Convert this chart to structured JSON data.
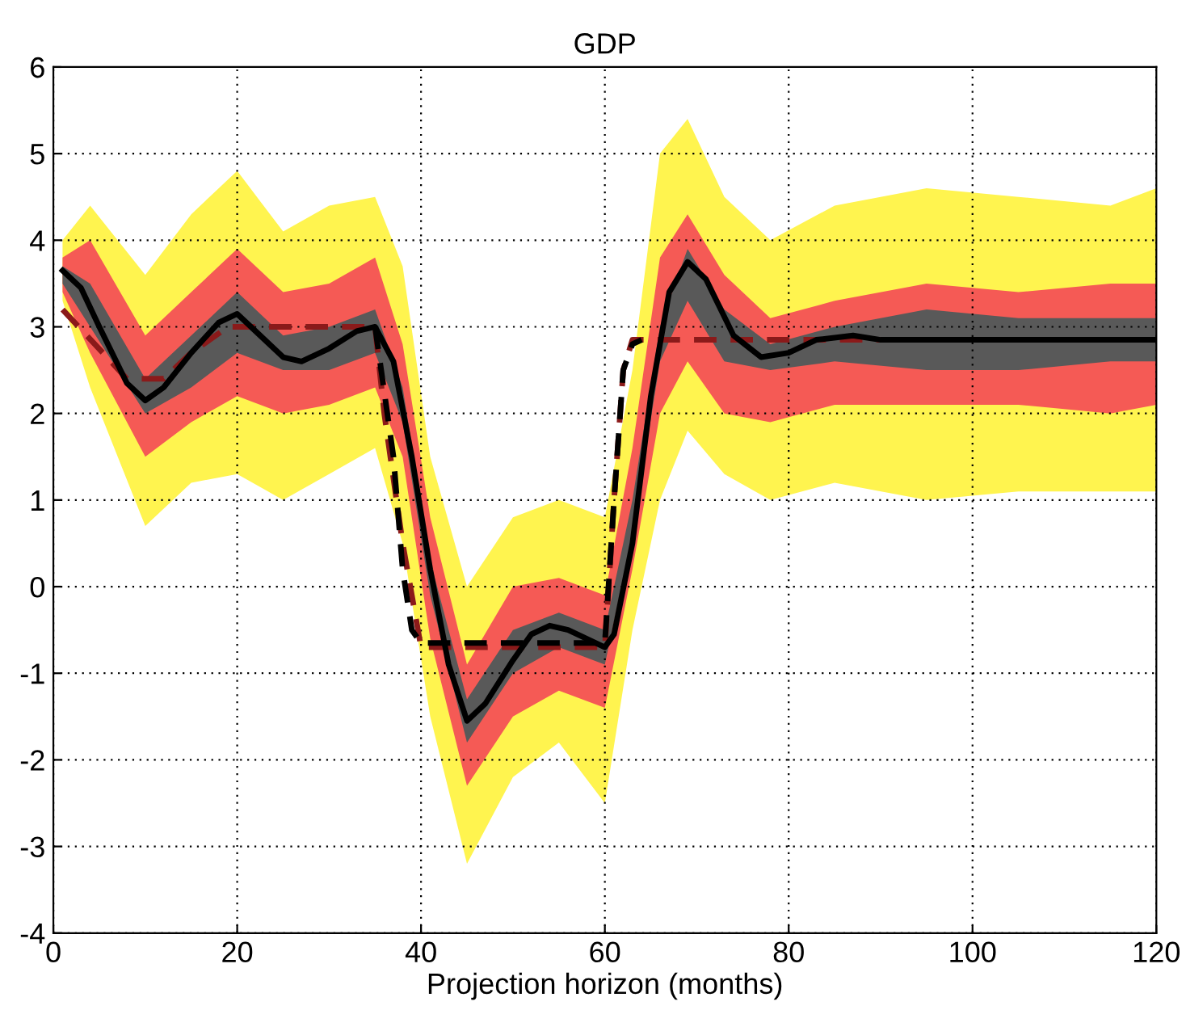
{
  "chart_data": {
    "type": "line",
    "title": "GDP",
    "xlabel": "Projection horizon (months)",
    "xlim": [
      0,
      120
    ],
    "ylim": [
      -4,
      6
    ],
    "xticks": [
      0,
      20,
      40,
      60,
      80,
      100,
      120
    ],
    "yticks": [
      -4,
      -3,
      -2,
      -1,
      0,
      1,
      2,
      3,
      4,
      5,
      6
    ],
    "grid": true,
    "series": [
      {
        "color": "#fff44f",
        "x": [
          1,
          4,
          10,
          15,
          20,
          25,
          30,
          35,
          38,
          41,
          45,
          50,
          55,
          60,
          63,
          66,
          69,
          73,
          78,
          85,
          95,
          105,
          115,
          120
        ],
        "values": [
          null,
          null,
          null,
          null,
          null,
          null,
          null,
          null,
          null,
          null,
          null,
          null,
          null,
          null,
          null,
          null,
          null,
          null,
          null,
          null,
          null,
          null,
          null,
          null
        ],
        "lower": [
          3.3,
          2.3,
          0.7,
          1.2,
          1.3,
          1.0,
          1.3,
          1.6,
          0.5,
          -1.5,
          -3.2,
          -2.2,
          -1.8,
          -2.5,
          -0.5,
          1.0,
          1.8,
          1.3,
          1.0,
          1.2,
          1.0,
          1.1,
          1.1,
          1.1
        ],
        "upper": [
          4.0,
          4.4,
          3.6,
          4.3,
          4.8,
          4.1,
          4.4,
          4.5,
          3.7,
          1.5,
          0.0,
          0.8,
          1.0,
          0.8,
          2.5,
          5.0,
          5.4,
          4.5,
          4.0,
          4.4,
          4.6,
          4.5,
          4.4,
          4.6
        ]
      },
      {
        "color": "#f55a55",
        "x": [
          1,
          4,
          10,
          15,
          20,
          25,
          30,
          35,
          38,
          41,
          45,
          50,
          55,
          60,
          63,
          66,
          69,
          73,
          78,
          85,
          95,
          105,
          115,
          120
        ],
        "values": [
          null,
          null,
          null,
          null,
          null,
          null,
          null,
          null,
          null,
          null,
          null,
          null,
          null,
          null,
          null,
          null,
          null,
          null,
          null,
          null,
          null,
          null,
          null,
          null
        ],
        "lower": [
          3.4,
          2.7,
          1.5,
          1.9,
          2.2,
          2.0,
          2.1,
          2.3,
          1.5,
          -0.6,
          -2.3,
          -1.5,
          -1.2,
          -1.4,
          0.2,
          2.0,
          2.6,
          2.0,
          1.9,
          2.1,
          2.1,
          2.1,
          2.0,
          2.1
        ],
        "upper": [
          3.8,
          4.0,
          2.9,
          3.4,
          3.9,
          3.4,
          3.5,
          3.8,
          2.8,
          0.8,
          -0.9,
          0.0,
          0.1,
          -0.1,
          1.6,
          3.8,
          4.3,
          3.6,
          3.1,
          3.3,
          3.5,
          3.4,
          3.5,
          3.5
        ]
      },
      {
        "color": "#595959",
        "x": [
          1,
          4,
          10,
          15,
          20,
          25,
          30,
          35,
          38,
          41,
          45,
          50,
          55,
          60,
          63,
          66,
          69,
          73,
          78,
          85,
          95,
          105,
          115,
          120
        ],
        "values": [
          null,
          null,
          null,
          null,
          null,
          null,
          null,
          null,
          null,
          null,
          null,
          null,
          null,
          null,
          null,
          null,
          null,
          null,
          null,
          null,
          null,
          null,
          null,
          null
        ],
        "lower": [
          3.5,
          3.0,
          2.0,
          2.3,
          2.7,
          2.5,
          2.5,
          2.7,
          1.9,
          -0.1,
          -1.8,
          -1.0,
          -0.7,
          -0.9,
          0.6,
          2.6,
          3.3,
          2.6,
          2.5,
          2.6,
          2.5,
          2.5,
          2.6,
          2.6
        ],
        "upper": [
          3.7,
          3.5,
          2.4,
          2.9,
          3.4,
          2.9,
          3.0,
          3.2,
          2.3,
          0.3,
          -1.3,
          -0.5,
          -0.3,
          -0.5,
          1.0,
          3.0,
          3.9,
          3.2,
          2.8,
          3.0,
          3.2,
          3.1,
          3.1,
          3.1
        ]
      },
      {
        "color": "#8b1a1a",
        "line_style": "dashed",
        "x": [
          1,
          8,
          12,
          15,
          19,
          35,
          36,
          38,
          40,
          60,
          61,
          62,
          63,
          120
        ],
        "values": [
          3.2,
          2.4,
          2.4,
          2.7,
          3.0,
          3.0,
          2.0,
          0.5,
          -0.7,
          -0.7,
          1.0,
          2.5,
          2.85,
          2.85
        ]
      },
      {
        "color": "#000000",
        "line_style": "dashed",
        "x": [
          35,
          37,
          38,
          39,
          40,
          60,
          61,
          62,
          63,
          64
        ],
        "values": [
          3.0,
          1.5,
          0.2,
          -0.5,
          -0.65,
          -0.65,
          1.0,
          2.5,
          2.8,
          2.85
        ]
      },
      {
        "color": "#000000",
        "line_style": "solid",
        "x": [
          1,
          3,
          5,
          8,
          10,
          12,
          15,
          18,
          20,
          22,
          25,
          27,
          30,
          33,
          35,
          37,
          39,
          41,
          43,
          45,
          47,
          50,
          52,
          54,
          56,
          58,
          60,
          61,
          63,
          65,
          67,
          69,
          71,
          74,
          77,
          80,
          83,
          87,
          90,
          95,
          100,
          110,
          120
        ],
        "values": [
          3.65,
          3.45,
          3.0,
          2.35,
          2.15,
          2.3,
          2.7,
          3.05,
          3.15,
          2.95,
          2.65,
          2.6,
          2.75,
          2.95,
          3.0,
          2.6,
          1.5,
          0.2,
          -0.9,
          -1.55,
          -1.35,
          -0.85,
          -0.55,
          -0.45,
          -0.5,
          -0.6,
          -0.7,
          -0.55,
          0.5,
          2.2,
          3.4,
          3.75,
          3.55,
          2.9,
          2.65,
          2.7,
          2.85,
          2.9,
          2.85,
          2.85,
          2.85,
          2.85,
          2.85
        ]
      }
    ]
  }
}
